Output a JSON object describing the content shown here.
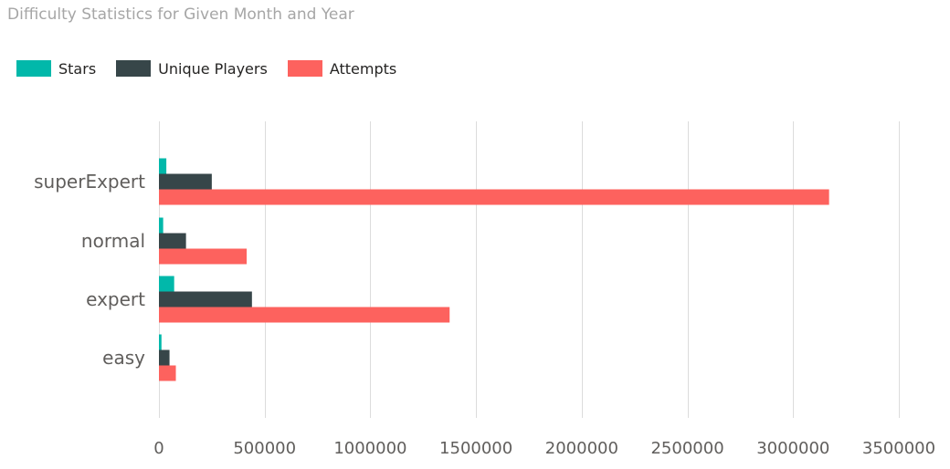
{
  "chart_data": {
    "type": "bar",
    "orientation": "horizontal",
    "title": "Difficulty Statistics for Given Month and Year",
    "xlabel": "",
    "ylabel": "",
    "categories": [
      "superExpert",
      "normal",
      "expert",
      "easy"
    ],
    "series": [
      {
        "name": "Stars",
        "color": "#01b8aa",
        "values": [
          35000,
          20000,
          72000,
          12000
        ]
      },
      {
        "name": "Unique Players",
        "color": "#374649",
        "values": [
          250000,
          128000,
          440000,
          50000
        ]
      },
      {
        "name": "Attempts",
        "color": "#fd625e",
        "values": [
          3170000,
          415000,
          1375000,
          80000
        ]
      }
    ],
    "xlim": [
      0,
      3500000
    ],
    "xticks": [
      "0",
      "500000",
      "1000000",
      "1500000",
      "2000000",
      "2500000",
      "3000000",
      "3500000"
    ],
    "grid": true,
    "legend_position": "top-left"
  }
}
